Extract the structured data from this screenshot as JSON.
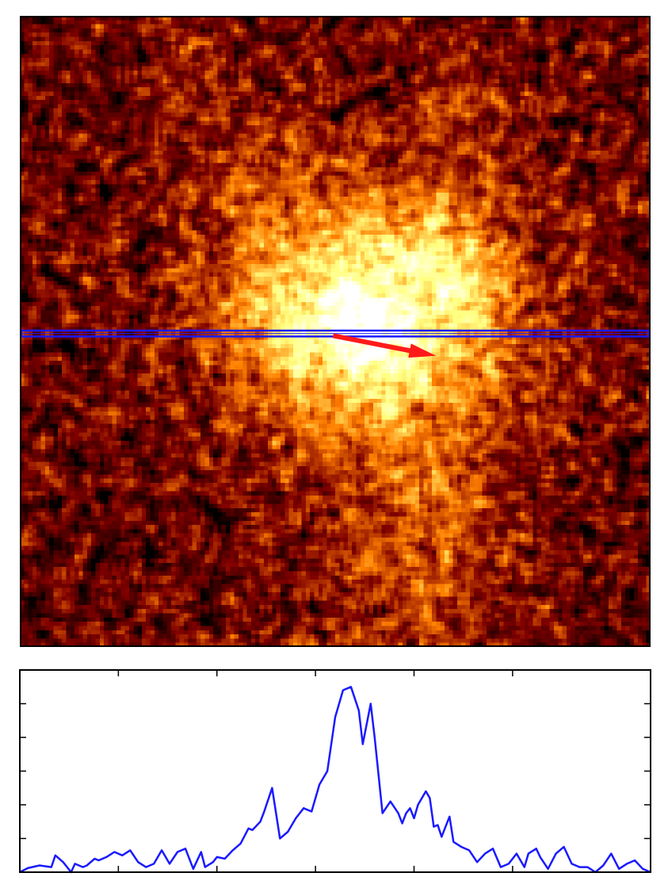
{
  "chart_data": [
    {
      "type": "heatmap",
      "title": "",
      "xlabel": "",
      "ylabel": "",
      "grid": false,
      "colormap": "afmhot",
      "pixels": [
        150,
        150
      ],
      "colors": {
        "slit": "#1a1aff",
        "arrow": "#ff1a1a"
      },
      "slit_band": {
        "y": 75.5,
        "height": 1.4
      },
      "arrow": {
        "x0": 74.5,
        "y0": 76.0,
        "x1": 99.0,
        "y1": 80.8
      },
      "blobs": [
        {
          "x": 84,
          "y": 72,
          "sigma": 22,
          "amp": 0.6
        },
        {
          "x": 82,
          "y": 74,
          "sigma": 7,
          "amp": 0.3
        },
        {
          "x": 101,
          "y": 60,
          "sigma": 11,
          "amp": 0.18
        },
        {
          "x": 63,
          "y": 68,
          "sigma": 11,
          "amp": 0.15
        },
        {
          "x": 54,
          "y": 36,
          "sigma": 12,
          "amp": 0.12
        },
        {
          "x": 102,
          "y": 20,
          "sigma": 8,
          "amp": 0.12
        },
        {
          "x": 40,
          "y": 12,
          "sigma": 6,
          "amp": 0.12
        },
        {
          "x": 96,
          "y": 133,
          "sigma": 15,
          "amp": 0.18
        },
        {
          "x": 99,
          "y": 118,
          "sigma": 7,
          "amp": 0.12
        },
        {
          "x": 28,
          "y": 80,
          "sigma": 8,
          "amp": 0.06
        }
      ]
    },
    {
      "type": "line",
      "title": "",
      "xlabel": "",
      "ylabel": "",
      "grid": false,
      "xlim": [
        0,
        160
      ],
      "ylim": [
        0,
        6.0
      ],
      "x_ticks": [
        25,
        50,
        75,
        100,
        125
      ],
      "y_ticks": [
        1,
        2,
        3,
        4,
        5
      ],
      "series": [
        {
          "color": "#1a1aff",
          "x": [
            0,
            2,
            5,
            8,
            9,
            11,
            13,
            14,
            16,
            17,
            19,
            20,
            22,
            24,
            26,
            28,
            30,
            32,
            34,
            36,
            38,
            40,
            42,
            44,
            46,
            47,
            49,
            50,
            52,
            54,
            56,
            58,
            59,
            61,
            62,
            64,
            66,
            68,
            70,
            72,
            74,
            76,
            78,
            80,
            82,
            84,
            86,
            87,
            89,
            90,
            92,
            94,
            96,
            97,
            98,
            99,
            100,
            101,
            103,
            104,
            105,
            106,
            107,
            108,
            109,
            110,
            112,
            114,
            116,
            118,
            120,
            122,
            124,
            126,
            128,
            129,
            131,
            132,
            134,
            136,
            138,
            140,
            142,
            144,
            146,
            148,
            150,
            152,
            154,
            156,
            158,
            160
          ],
          "y": [
            0.0,
            0.12,
            0.2,
            0.15,
            0.5,
            0.3,
            0.0,
            0.25,
            0.15,
            0.2,
            0.4,
            0.35,
            0.45,
            0.6,
            0.5,
            0.65,
            0.3,
            0.15,
            0.25,
            0.65,
            0.25,
            0.6,
            0.7,
            0.1,
            0.6,
            0.15,
            0.3,
            0.45,
            0.4,
            0.65,
            0.85,
            1.3,
            1.25,
            1.5,
            1.8,
            2.5,
            1.0,
            1.2,
            1.6,
            1.9,
            1.8,
            2.6,
            3.0,
            4.6,
            5.4,
            5.5,
            4.8,
            3.8,
            5.0,
            4.0,
            1.75,
            2.1,
            1.75,
            1.45,
            1.75,
            1.9,
            1.6,
            2.0,
            2.4,
            2.2,
            1.35,
            1.4,
            1.05,
            1.35,
            1.65,
            0.9,
            0.75,
            0.65,
            0.3,
            0.55,
            0.7,
            0.15,
            0.25,
            0.55,
            0.15,
            0.55,
            0.7,
            0.45,
            0.1,
            0.55,
            0.75,
            0.25,
            0.15,
            0.15,
            0.0,
            0.2,
            0.55,
            0.1,
            0.25,
            0.35,
            0.1,
            0.0
          ]
        }
      ]
    }
  ]
}
